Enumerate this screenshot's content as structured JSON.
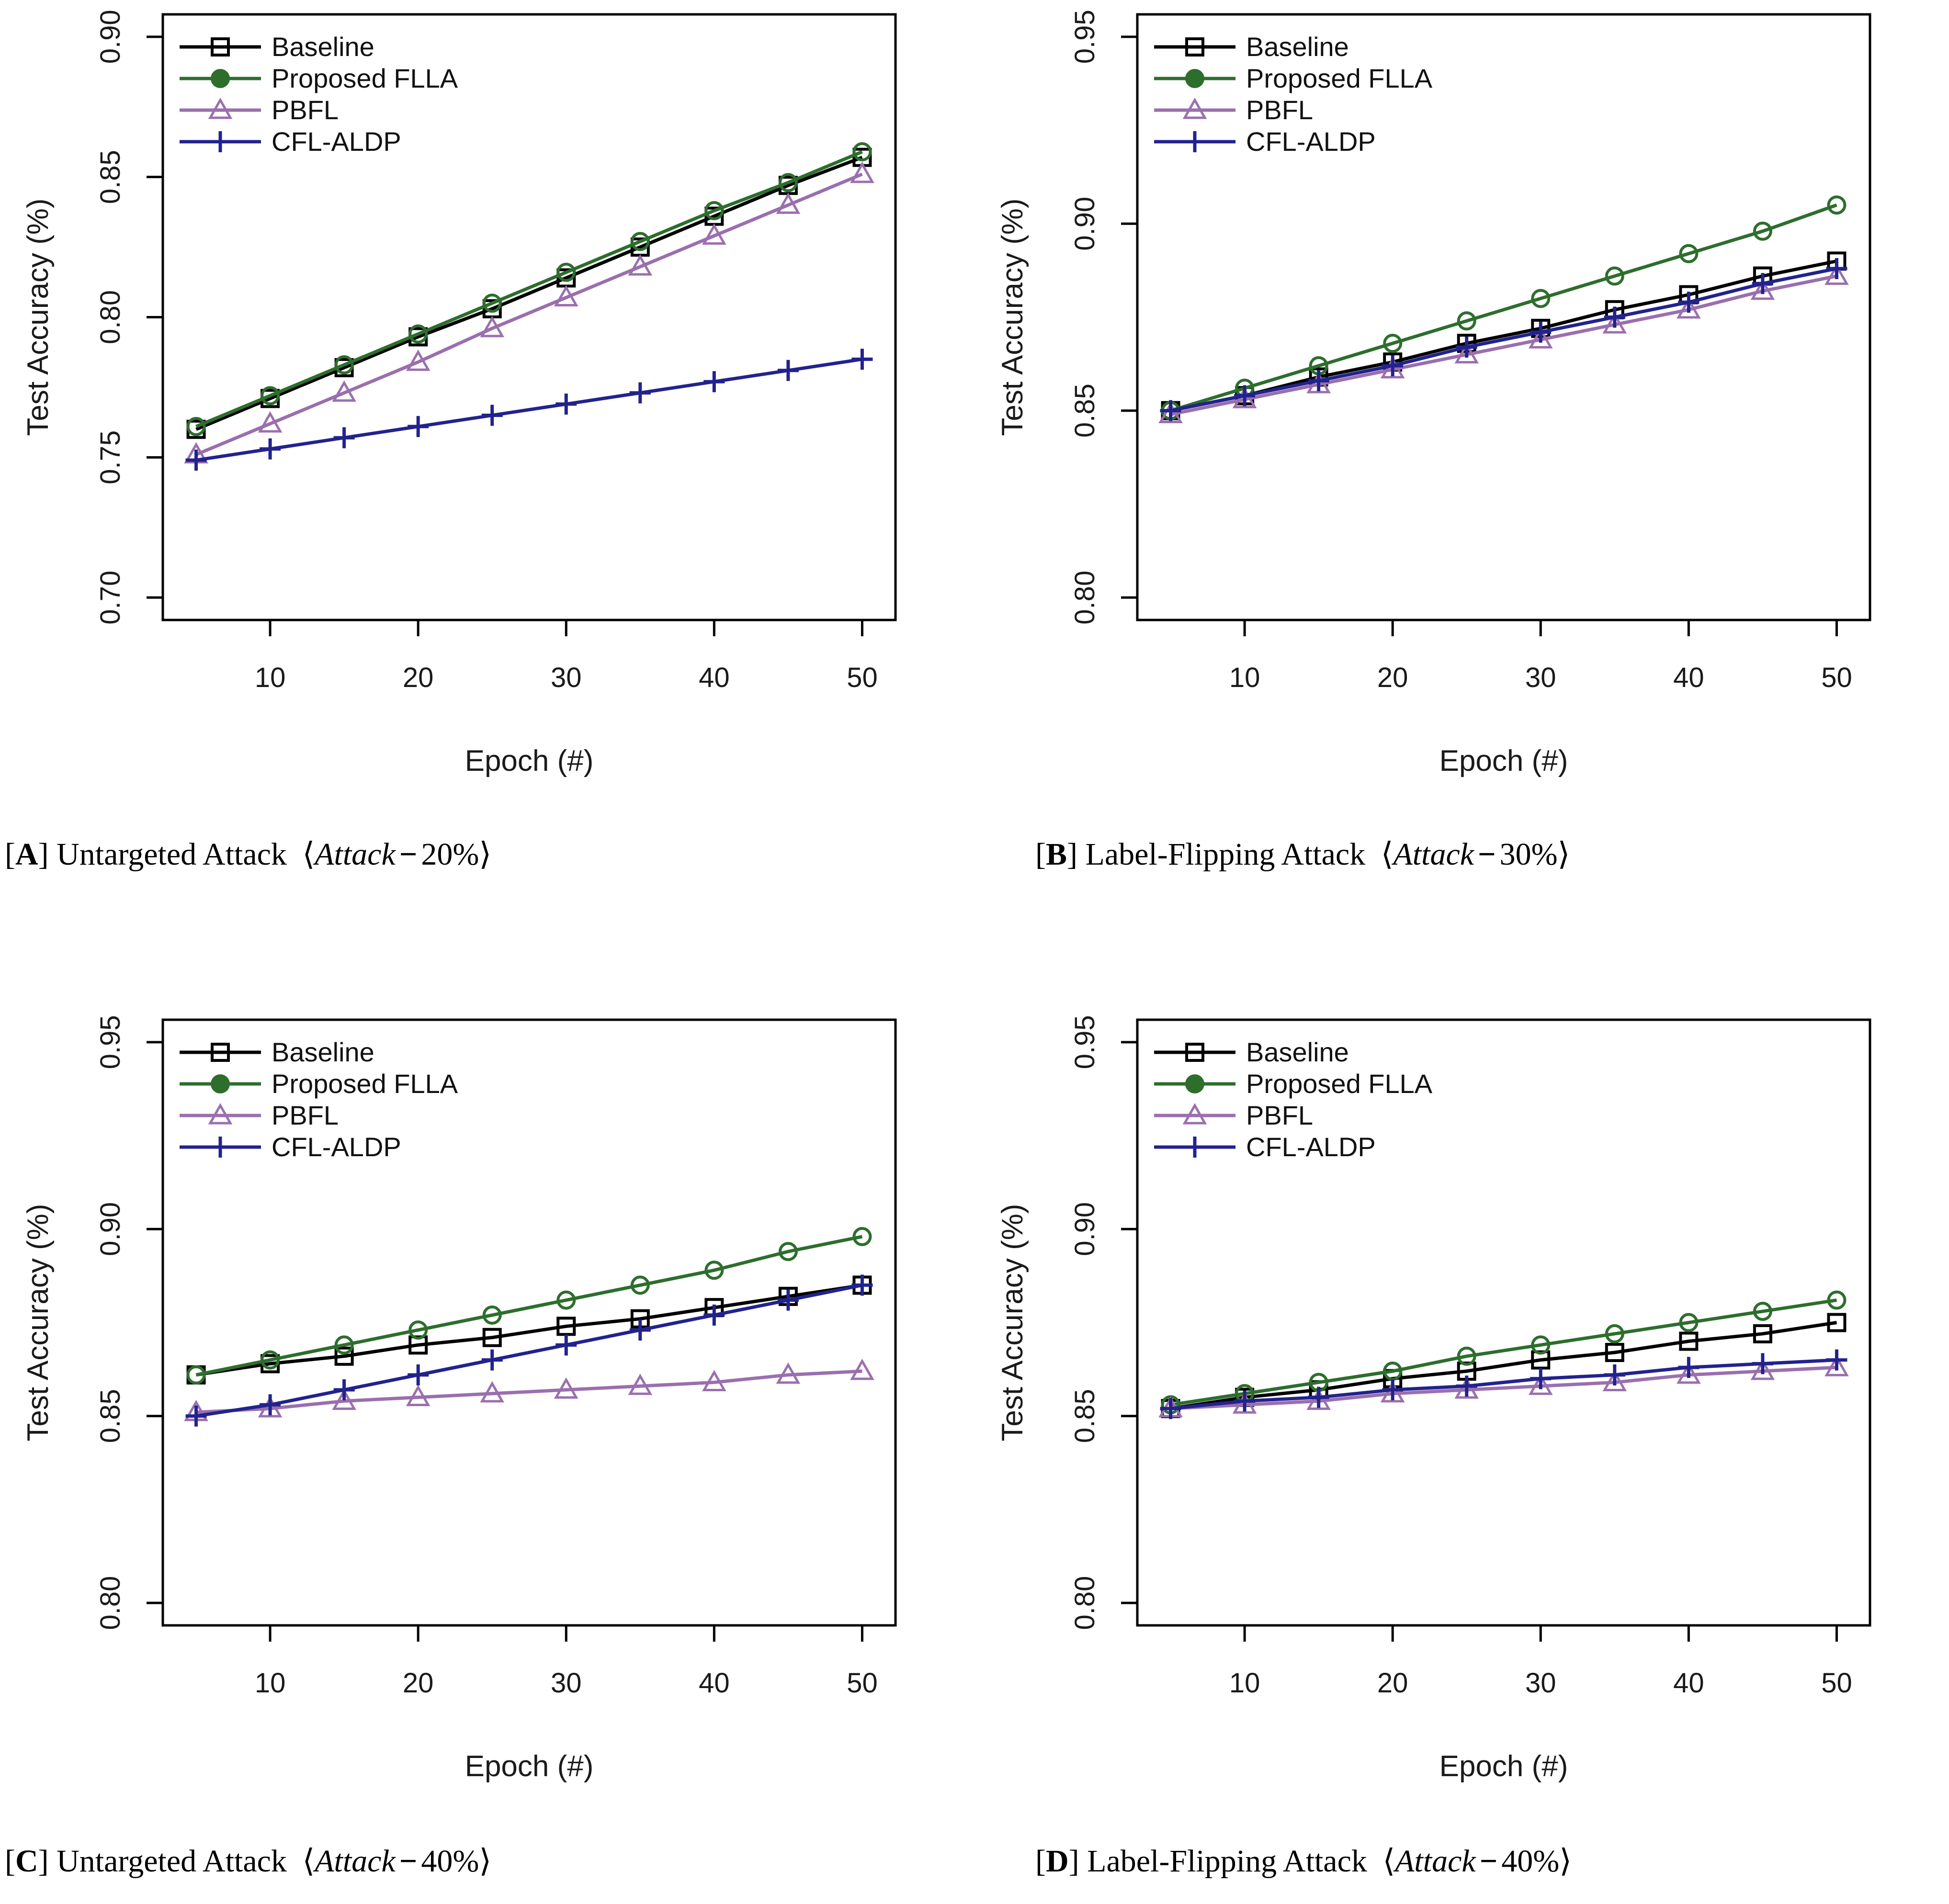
{
  "figure": {
    "xlabel": "Epoch (#)",
    "ylabel": "Test Accuracy (%)",
    "legend": [
      "Baseline",
      "Proposed FLLA",
      "PBFL",
      "CFL-ALDP"
    ],
    "colors": {
      "baseline": "#000000",
      "proposed_flla": "#2d6e2d",
      "pbfl": "#9a6fae",
      "cfl_aldp": "#22228e"
    }
  },
  "chart_data": [
    {
      "id": "A",
      "type": "line",
      "caption": {
        "open": "[",
        "label": "A",
        "close": "]",
        "title": "Untargeted Attack",
        "angle_open": "⟨",
        "attack_word": "Attack",
        "minus": "−",
        "attack_value": "20%",
        "angle_close": "⟩"
      },
      "xlabel": "Epoch (#)",
      "ylabel": "Test Accuracy (%)",
      "x": [
        5,
        10,
        15,
        20,
        25,
        30,
        35,
        40,
        45,
        50
      ],
      "xticks": [
        10,
        20,
        30,
        40,
        50
      ],
      "ylim": [
        0.7,
        0.9
      ],
      "yticks": [
        0.7,
        0.75,
        0.8,
        0.85,
        0.9
      ],
      "ytick_labels": [
        "0.70",
        "0.75",
        "0.80",
        "0.85",
        "0.90"
      ],
      "grid": false,
      "legend_position": "top-left",
      "series": [
        {
          "name": "Baseline",
          "marker": "square",
          "color": "#000000",
          "values": [
            0.76,
            0.771,
            0.782,
            0.793,
            0.803,
            0.814,
            0.825,
            0.836,
            0.847,
            0.857
          ]
        },
        {
          "name": "Proposed FLLA",
          "marker": "circle",
          "color": "#2d6e2d",
          "legend_marker_filled": true,
          "values": [
            0.761,
            0.772,
            0.783,
            0.794,
            0.805,
            0.816,
            0.827,
            0.838,
            0.848,
            0.859
          ]
        },
        {
          "name": "PBFL",
          "marker": "triangle",
          "color": "#9a6fae",
          "values": [
            0.751,
            0.762,
            0.773,
            0.784,
            0.796,
            0.807,
            0.818,
            0.829,
            0.84,
            0.851
          ]
        },
        {
          "name": "CFL-ALDP",
          "marker": "plus",
          "color": "#22228e",
          "values": [
            0.749,
            0.753,
            0.757,
            0.761,
            0.765,
            0.769,
            0.773,
            0.777,
            0.781,
            0.785
          ]
        }
      ]
    },
    {
      "id": "B",
      "type": "line",
      "caption": {
        "open": "[",
        "label": "B",
        "close": "]",
        "title": "Label-Flipping Attack",
        "angle_open": "⟨",
        "attack_word": "Attack",
        "minus": "−",
        "attack_value": "30%",
        "angle_close": "⟩"
      },
      "xlabel": "Epoch (#)",
      "ylabel": "Test Accuracy (%)",
      "x": [
        5,
        10,
        15,
        20,
        25,
        30,
        35,
        40,
        45,
        50
      ],
      "xticks": [
        10,
        20,
        30,
        40,
        50
      ],
      "ylim": [
        0.8,
        0.95
      ],
      "yticks": [
        0.8,
        0.85,
        0.9,
        0.95
      ],
      "ytick_labels": [
        "0.80",
        "0.85",
        "0.90",
        "0.95"
      ],
      "grid": false,
      "legend_position": "top-left",
      "series": [
        {
          "name": "Baseline",
          "marker": "square",
          "color": "#000000",
          "values": [
            0.85,
            0.854,
            0.859,
            0.863,
            0.868,
            0.872,
            0.877,
            0.881,
            0.886,
            0.89
          ]
        },
        {
          "name": "Proposed FLLA",
          "marker": "circle",
          "color": "#2d6e2d",
          "legend_marker_filled": true,
          "values": [
            0.85,
            0.856,
            0.862,
            0.868,
            0.874,
            0.88,
            0.886,
            0.892,
            0.898,
            0.905
          ]
        },
        {
          "name": "PBFL",
          "marker": "triangle",
          "color": "#9a6fae",
          "values": [
            0.849,
            0.853,
            0.857,
            0.861,
            0.865,
            0.869,
            0.873,
            0.877,
            0.882,
            0.886
          ]
        },
        {
          "name": "CFL-ALDP",
          "marker": "plus",
          "color": "#22228e",
          "values": [
            0.85,
            0.854,
            0.858,
            0.862,
            0.867,
            0.871,
            0.875,
            0.879,
            0.884,
            0.888
          ]
        }
      ]
    },
    {
      "id": "C",
      "type": "line",
      "caption": {
        "open": "[",
        "label": "C",
        "close": "]",
        "title": "Untargeted Attack",
        "angle_open": "⟨",
        "attack_word": "Attack",
        "minus": "−",
        "attack_value": "40%",
        "angle_close": "⟩"
      },
      "xlabel": "Epoch (#)",
      "ylabel": "Test Accuracy (%)",
      "x": [
        5,
        10,
        15,
        20,
        25,
        30,
        35,
        40,
        45,
        50
      ],
      "xticks": [
        10,
        20,
        30,
        40,
        50
      ],
      "ylim": [
        0.8,
        0.95
      ],
      "yticks": [
        0.8,
        0.85,
        0.9,
        0.95
      ],
      "ytick_labels": [
        "0.80",
        "0.85",
        "0.90",
        "0.95"
      ],
      "grid": false,
      "legend_position": "top-left",
      "series": [
        {
          "name": "Baseline",
          "marker": "square",
          "color": "#000000",
          "values": [
            0.861,
            0.864,
            0.866,
            0.869,
            0.871,
            0.874,
            0.876,
            0.879,
            0.882,
            0.885
          ]
        },
        {
          "name": "Proposed FLLA",
          "marker": "circle",
          "color": "#2d6e2d",
          "legend_marker_filled": true,
          "values": [
            0.861,
            0.865,
            0.869,
            0.873,
            0.877,
            0.881,
            0.885,
            0.889,
            0.894,
            0.898
          ]
        },
        {
          "name": "PBFL",
          "marker": "triangle",
          "color": "#9a6fae",
          "values": [
            0.851,
            0.852,
            0.854,
            0.855,
            0.856,
            0.857,
            0.858,
            0.859,
            0.861,
            0.862
          ]
        },
        {
          "name": "CFL-ALDP",
          "marker": "plus",
          "color": "#22228e",
          "values": [
            0.85,
            0.853,
            0.857,
            0.861,
            0.865,
            0.869,
            0.873,
            0.877,
            0.881,
            0.885
          ]
        }
      ]
    },
    {
      "id": "D",
      "type": "line",
      "caption": {
        "open": "[",
        "label": "D",
        "close": "]",
        "title": "Label-Flipping Attack",
        "angle_open": "⟨",
        "attack_word": "Attack",
        "minus": "−",
        "attack_value": "40%",
        "angle_close": "⟩"
      },
      "xlabel": "Epoch (#)",
      "ylabel": "Test Accuracy (%)",
      "x": [
        5,
        10,
        15,
        20,
        25,
        30,
        35,
        40,
        45,
        50
      ],
      "xticks": [
        10,
        20,
        30,
        40,
        50
      ],
      "ylim": [
        0.8,
        0.95
      ],
      "yticks": [
        0.8,
        0.85,
        0.9,
        0.95
      ],
      "ytick_labels": [
        "0.80",
        "0.85",
        "0.90",
        "0.95"
      ],
      "grid": false,
      "legend_position": "top-left",
      "series": [
        {
          "name": "Baseline",
          "marker": "square",
          "color": "#000000",
          "values": [
            0.852,
            0.855,
            0.857,
            0.86,
            0.862,
            0.865,
            0.867,
            0.87,
            0.872,
            0.875
          ]
        },
        {
          "name": "Proposed FLLA",
          "marker": "circle",
          "color": "#2d6e2d",
          "legend_marker_filled": true,
          "values": [
            0.853,
            0.856,
            0.859,
            0.862,
            0.866,
            0.869,
            0.872,
            0.875,
            0.878,
            0.881
          ]
        },
        {
          "name": "PBFL",
          "marker": "triangle",
          "color": "#9a6fae",
          "values": [
            0.852,
            0.853,
            0.854,
            0.856,
            0.857,
            0.858,
            0.859,
            0.861,
            0.862,
            0.863
          ]
        },
        {
          "name": "CFL-ALDP",
          "marker": "plus",
          "color": "#22228e",
          "values": [
            0.852,
            0.854,
            0.855,
            0.857,
            0.858,
            0.86,
            0.861,
            0.863,
            0.864,
            0.865
          ]
        }
      ]
    }
  ]
}
